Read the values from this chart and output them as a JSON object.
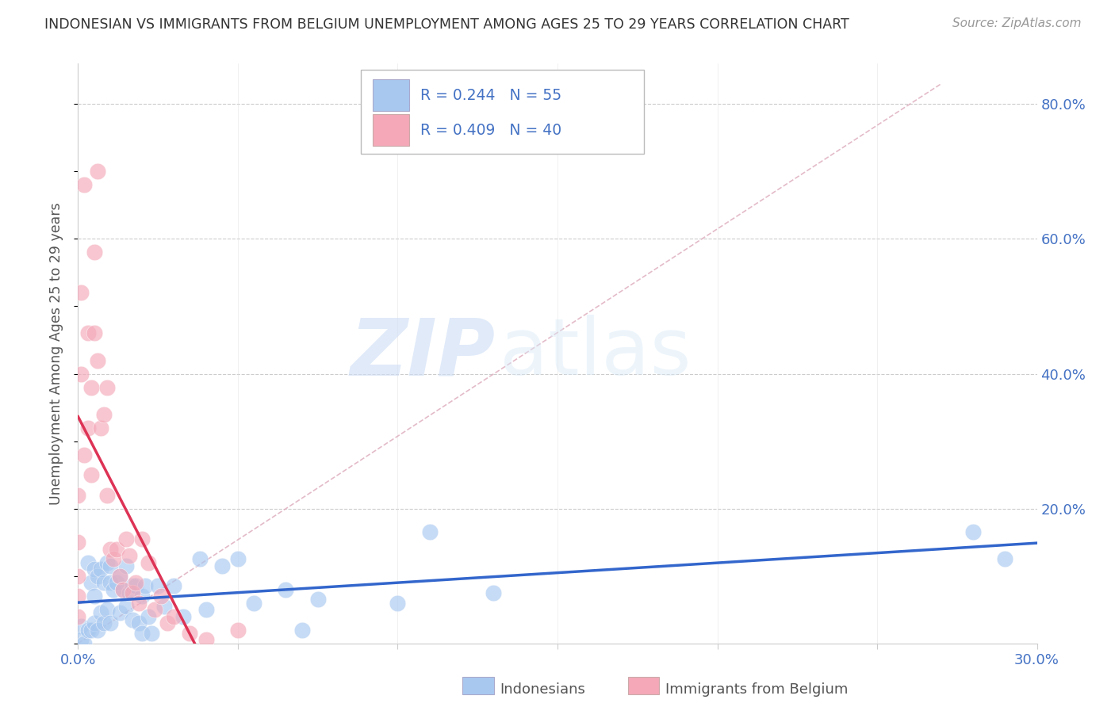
{
  "title": "INDONESIAN VS IMMIGRANTS FROM BELGIUM UNEMPLOYMENT AMONG AGES 25 TO 29 YEARS CORRELATION CHART",
  "source": "Source: ZipAtlas.com",
  "ylabel": "Unemployment Among Ages 25 to 29 years",
  "xlim": [
    0.0,
    0.3
  ],
  "ylim": [
    0.0,
    0.86
  ],
  "xticks": [
    0.0,
    0.05,
    0.1,
    0.15,
    0.2,
    0.25,
    0.3
  ],
  "xticklabels": [
    "0.0%",
    "",
    "",
    "",
    "",
    "",
    "30.0%"
  ],
  "yticks_right": [
    0.0,
    0.2,
    0.4,
    0.6,
    0.8
  ],
  "yticklabels_right": [
    "",
    "20.0%",
    "40.0%",
    "60.0%",
    "80.0%"
  ],
  "indonesian_color": "#a8c8f0",
  "belgium_color": "#f4a8b8",
  "indonesian_R": 0.244,
  "indonesian_N": 55,
  "belgium_R": 0.409,
  "belgium_N": 40,
  "legend_label_1": "Indonesians",
  "legend_label_2": "Immigrants from Belgium",
  "watermark_zip": "ZIP",
  "watermark_atlas": "atlas",
  "indonesian_scatter_x": [
    0.001,
    0.001,
    0.002,
    0.003,
    0.003,
    0.004,
    0.004,
    0.005,
    0.005,
    0.005,
    0.006,
    0.006,
    0.007,
    0.007,
    0.008,
    0.008,
    0.009,
    0.009,
    0.01,
    0.01,
    0.01,
    0.011,
    0.012,
    0.013,
    0.013,
    0.014,
    0.015,
    0.015,
    0.016,
    0.017,
    0.017,
    0.018,
    0.019,
    0.02,
    0.02,
    0.021,
    0.022,
    0.023,
    0.025,
    0.027,
    0.03,
    0.033,
    0.038,
    0.04,
    0.045,
    0.05,
    0.055,
    0.065,
    0.07,
    0.075,
    0.1,
    0.11,
    0.13,
    0.28,
    0.29
  ],
  "indonesian_scatter_y": [
    0.025,
    0.005,
    0.0,
    0.12,
    0.02,
    0.09,
    0.02,
    0.11,
    0.07,
    0.03,
    0.1,
    0.02,
    0.11,
    0.045,
    0.09,
    0.03,
    0.12,
    0.05,
    0.115,
    0.09,
    0.03,
    0.08,
    0.09,
    0.1,
    0.045,
    0.08,
    0.115,
    0.055,
    0.075,
    0.085,
    0.035,
    0.085,
    0.03,
    0.07,
    0.015,
    0.085,
    0.04,
    0.015,
    0.085,
    0.055,
    0.085,
    0.04,
    0.125,
    0.05,
    0.115,
    0.125,
    0.06,
    0.08,
    0.02,
    0.065,
    0.06,
    0.165,
    0.075,
    0.165,
    0.125
  ],
  "belgium_scatter_x": [
    0.0,
    0.0,
    0.0,
    0.0,
    0.0,
    0.001,
    0.001,
    0.002,
    0.002,
    0.003,
    0.003,
    0.004,
    0.004,
    0.005,
    0.005,
    0.006,
    0.006,
    0.007,
    0.008,
    0.009,
    0.009,
    0.01,
    0.011,
    0.012,
    0.013,
    0.014,
    0.015,
    0.016,
    0.017,
    0.018,
    0.019,
    0.02,
    0.022,
    0.024,
    0.026,
    0.028,
    0.03,
    0.035,
    0.04,
    0.05
  ],
  "belgium_scatter_y": [
    0.22,
    0.15,
    0.1,
    0.07,
    0.04,
    0.52,
    0.4,
    0.68,
    0.28,
    0.46,
    0.32,
    0.38,
    0.25,
    0.58,
    0.46,
    0.7,
    0.42,
    0.32,
    0.34,
    0.38,
    0.22,
    0.14,
    0.125,
    0.14,
    0.1,
    0.08,
    0.155,
    0.13,
    0.075,
    0.09,
    0.06,
    0.155,
    0.12,
    0.05,
    0.07,
    0.03,
    0.04,
    0.015,
    0.005,
    0.02
  ],
  "grid_color": "#cccccc",
  "title_color": "#333333",
  "axis_label_color": "#555555",
  "right_axis_color": "#4472c4",
  "trend_blue_color": "#3366cc",
  "trend_pink_color": "#dd3355",
  "diag_line_color": "#e8a0b0",
  "legend_text_color": "#4472c4"
}
